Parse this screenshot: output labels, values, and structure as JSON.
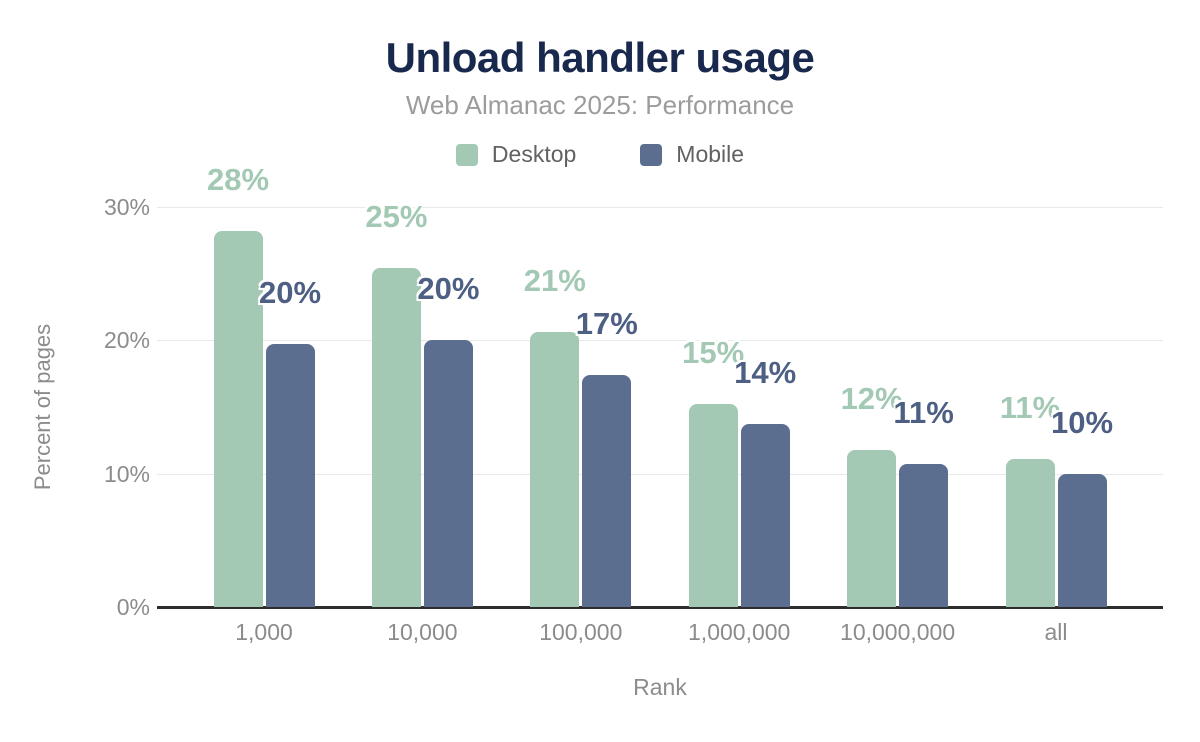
{
  "chart_data": {
    "type": "bar",
    "title": "Unload handler usage",
    "subtitle": "Web Almanac 2025: Performance",
    "xlabel": "Rank",
    "ylabel": "Percent of pages",
    "categories": [
      "1,000",
      "10,000",
      "100,000",
      "1,000,000",
      "10,000,000",
      "all"
    ],
    "series": [
      {
        "name": "Desktop",
        "color": "#a3c9b4",
        "label_color": "#a3c9b4",
        "values": [
          28.2,
          25.4,
          20.6,
          15.2,
          11.8,
          11.1
        ],
        "labels": [
          "28%",
          "25%",
          "21%",
          "15%",
          "12%",
          "11%"
        ]
      },
      {
        "name": "Mobile",
        "color": "#5c6e90",
        "label_color": "#4e5f84",
        "values": [
          19.7,
          20.0,
          17.4,
          13.7,
          10.7,
          10.0
        ],
        "labels": [
          "20%",
          "20%",
          "17%",
          "14%",
          "11%",
          "10%"
        ]
      }
    ],
    "ylim": [
      0,
      30
    ],
    "yticks": [
      {
        "label": "0%",
        "value": 0
      },
      {
        "label": "10%",
        "value": 10
      },
      {
        "label": "20%",
        "value": 20
      },
      {
        "label": "30%",
        "value": 30
      }
    ],
    "grid": true,
    "legend_position": "top"
  },
  "colors": {
    "title": "#19294d",
    "subtitle": "#9c9c9c",
    "axis_text": "#8c8c8c",
    "legend_text": "#616161",
    "gridline": "#e9e9e9",
    "baseline": "#2d2d2d",
    "background": "#ffffff"
  }
}
